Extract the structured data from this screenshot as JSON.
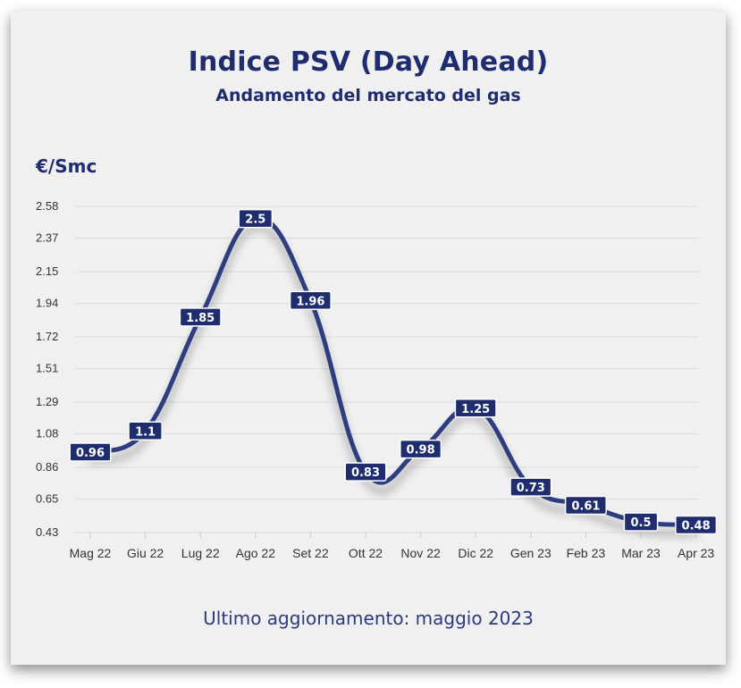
{
  "header": {
    "title": "Indice PSV (Day Ahead)",
    "subtitle": "Andamento del mercato del gas"
  },
  "footer": {
    "text": "Ultimo aggiornamento: maggio 2023"
  },
  "colors": {
    "line": "#2e3d7e",
    "label_bg": "#1f2d6e",
    "text": "#1f2d6e",
    "background": "#f0f0f0",
    "grid": "#dcdcdc"
  },
  "chart_data": {
    "type": "line",
    "ylabel": "€/Smc",
    "xlabel": "",
    "categories": [
      "Mag 22",
      "Giu 22",
      "Lug 22",
      "Ago 22",
      "Set 22",
      "Ott 22",
      "Nov 22",
      "Dic 22",
      "Gen 23",
      "Feb 23",
      "Mar 23",
      "Apr 23"
    ],
    "series": [
      {
        "values": [
          0.96,
          1.1,
          1.85,
          2.5,
          1.96,
          0.83,
          0.98,
          1.25,
          0.73,
          0.61,
          0.5,
          0.48
        ],
        "labels": [
          "0.96",
          "1.1",
          "1.85",
          "2.5",
          "1.96",
          "0.83",
          "0.98",
          "1.25",
          "0.73",
          "0.61",
          "0.5",
          "0.48"
        ]
      }
    ],
    "yticks": [
      "0.43",
      "0.65",
      "0.86",
      "1.08",
      "1.29",
      "1.51",
      "1.72",
      "1.94",
      "2.15",
      "2.37",
      "2.58"
    ],
    "ylim": [
      0.43,
      2.58
    ],
    "grid": true,
    "legend": "none"
  }
}
